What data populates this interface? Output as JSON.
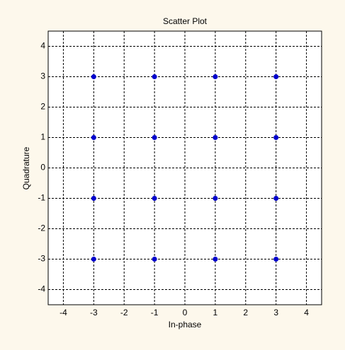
{
  "chart_data": {
    "type": "scatter",
    "title": "Scatter Plot",
    "x_label": "In-phase",
    "y_label": "Quadrature",
    "series": [
      {
        "color": "#0000cc",
        "x": [
          -3,
          -1,
          1,
          3,
          -3,
          -1,
          1,
          3,
          -3,
          -1,
          1,
          3,
          -3,
          -1,
          1,
          3
        ],
        "values": [
          3,
          3,
          3,
          3,
          1,
          1,
          1,
          1,
          -1,
          -1,
          -1,
          -1,
          -3,
          -3,
          -3,
          -3
        ]
      }
    ],
    "xlim": [
      -4.5,
      4.5
    ],
    "ylim": [
      -4.5,
      4.5
    ],
    "xticks": [
      -4,
      -3,
      -2,
      -1,
      0,
      1,
      2,
      3,
      4
    ],
    "yticks": [
      -4,
      -3,
      -2,
      -1,
      0,
      1,
      2,
      3,
      4
    ],
    "grid": true
  }
}
